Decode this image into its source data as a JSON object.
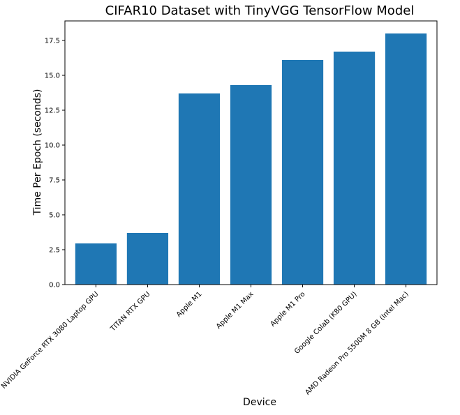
{
  "chart_data": {
    "type": "bar",
    "title": "CIFAR10 Dataset with TinyVGG TensorFlow Model",
    "xlabel": "Device",
    "ylabel": "Time Per Epoch (seconds)",
    "categories": [
      "NVIDIA GeForce RTX 3080 Laptop GPU",
      "TITAN RTX GPU",
      "Apple M1",
      "Apple M1 Max",
      "Apple M1 Pro",
      "Google Colab (K80 GPU)",
      "AMD Radeon Pro 5500M 8 GB (Intel Mac)"
    ],
    "values": [
      2.95,
      3.7,
      13.7,
      14.3,
      16.1,
      16.7,
      18.0
    ],
    "ylim": [
      0,
      18.9
    ],
    "yticks": [
      "0.0",
      "2.5",
      "5.0",
      "7.5",
      "10.0",
      "12.5",
      "15.0",
      "17.5"
    ],
    "ytick_values": [
      0,
      2.5,
      5.0,
      7.5,
      10.0,
      12.5,
      15.0,
      17.5
    ],
    "grid": false,
    "legend": "none",
    "bar_color": "#1f77b4"
  }
}
